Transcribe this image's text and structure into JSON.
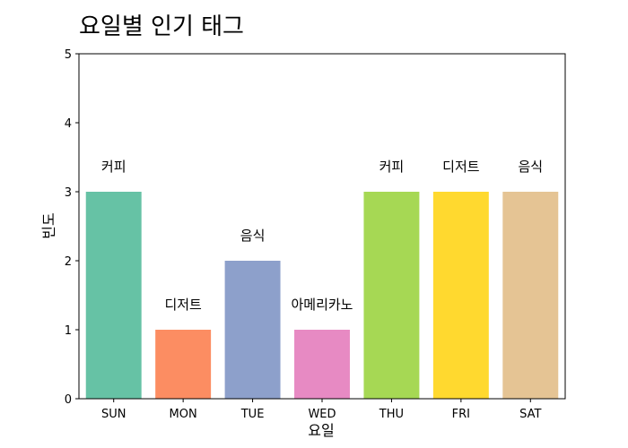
{
  "chart_data": {
    "type": "bar",
    "title": "요일별 인기 태그",
    "xlabel": "요일",
    "ylabel": "빈도",
    "categories": [
      "SUN",
      "MON",
      "TUE",
      "WED",
      "THU",
      "FRI",
      "SAT"
    ],
    "values": [
      3,
      1,
      2,
      1,
      3,
      3,
      3
    ],
    "bar_labels": [
      "커피",
      "디저트",
      "음식",
      "아메리카노",
      "커피",
      "디저트",
      "음식"
    ],
    "colors": [
      "#66c2a5",
      "#fc8d62",
      "#8da0cb",
      "#e78ac3",
      "#a6d854",
      "#ffd92f",
      "#e5c494"
    ],
    "ylim": [
      0,
      5
    ],
    "yticks": [
      "0",
      "1",
      "2",
      "3",
      "4",
      "5"
    ],
    "grid": false
  }
}
